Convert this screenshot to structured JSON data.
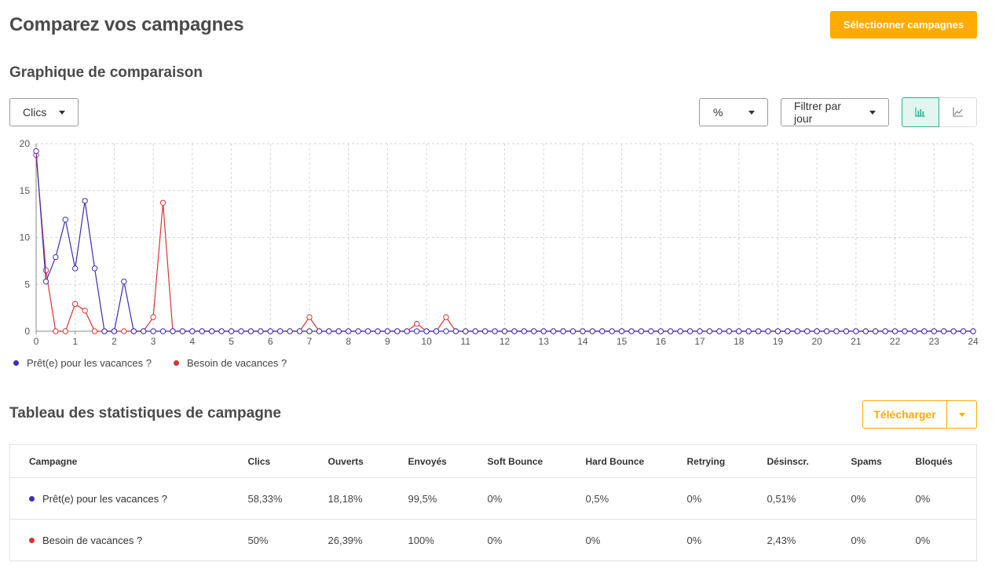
{
  "header": {
    "title": "Comparez vos campagnes",
    "select_button": "Sélectionner campagnes"
  },
  "chart_section": {
    "title": "Graphique de comparaison",
    "metric_select": "Clics",
    "unit_select": "%",
    "filter_select": "Filtrer par jour",
    "view_toggle": {
      "bar_icon": "bar-chart-icon",
      "line_icon": "line-chart-icon",
      "active": "bar"
    }
  },
  "chart_data": {
    "type": "line",
    "x": [
      0,
      0.25,
      0.5,
      0.75,
      1,
      1.25,
      1.5,
      1.75,
      2,
      2.25,
      2.5,
      2.75,
      3,
      3.25,
      3.5,
      3.75,
      4,
      4.25,
      4.5,
      4.75,
      5,
      5.25,
      5.5,
      5.75,
      6,
      6.25,
      6.5,
      6.75,
      7,
      7.25,
      7.5,
      7.75,
      8,
      8.25,
      8.5,
      8.75,
      9,
      9.25,
      9.5,
      9.75,
      10,
      10.25,
      10.5,
      10.75,
      11,
      11.25,
      11.5,
      11.75,
      12,
      12.25,
      12.5,
      12.75,
      13,
      13.25,
      13.5,
      13.75,
      14,
      14.25,
      14.5,
      14.75,
      15,
      15.25,
      15.5,
      15.75,
      16,
      16.25,
      16.5,
      16.75,
      17,
      17.25,
      17.5,
      17.75,
      18,
      18.25,
      18.5,
      18.75,
      19,
      19.25,
      19.5,
      19.75,
      20,
      20.25,
      20.5,
      20.75,
      21,
      21.25,
      21.5,
      21.75,
      22,
      22.25,
      22.5,
      22.75,
      23,
      23.25,
      23.5,
      23.75,
      24
    ],
    "xlim": [
      0,
      24
    ],
    "ylim": [
      0,
      20
    ],
    "xticks": [
      0,
      1,
      2,
      3,
      4,
      5,
      6,
      7,
      8,
      9,
      10,
      11,
      12,
      13,
      14,
      15,
      16,
      17,
      18,
      19,
      20,
      21,
      22,
      23,
      24
    ],
    "yticks": [
      0,
      5,
      10,
      15,
      20
    ],
    "grid": true,
    "legend_position": "bottom-left",
    "series": [
      {
        "name": "Prêt(e) pour les vacances ?",
        "color": "#3b2fb5",
        "values": [
          19.2,
          5.3,
          7.9,
          11.9,
          6.7,
          13.9,
          6.7,
          0,
          0,
          5.3,
          0,
          0,
          0,
          0,
          0,
          0,
          0,
          0,
          0,
          0,
          0,
          0,
          0,
          0,
          0,
          0,
          0,
          0,
          0,
          0,
          0,
          0,
          0,
          0,
          0,
          0,
          0,
          0,
          0,
          0,
          0,
          0,
          0,
          0,
          0,
          0,
          0,
          0,
          0,
          0,
          0,
          0,
          0,
          0,
          0,
          0,
          0,
          0,
          0,
          0,
          0,
          0,
          0,
          0,
          0,
          0,
          0,
          0,
          0,
          0,
          0,
          0,
          0,
          0,
          0,
          0,
          0,
          0,
          0,
          0,
          0,
          0,
          0,
          0,
          0,
          0,
          0,
          0,
          0,
          0,
          0,
          0,
          0,
          0,
          0,
          0,
          0
        ]
      },
      {
        "name": "Besoin de vacances ?",
        "color": "#d93535",
        "values": [
          18.8,
          6.5,
          0,
          0,
          2.9,
          2.2,
          0,
          0,
          0,
          0,
          0,
          0,
          1.5,
          13.7,
          0,
          0,
          0,
          0,
          0,
          0,
          0,
          0,
          0,
          0,
          0,
          0,
          0,
          0,
          1.5,
          0,
          0,
          0,
          0,
          0,
          0,
          0,
          0,
          0,
          0,
          0.8,
          0,
          0,
          1.5,
          0,
          0,
          0,
          0,
          0,
          0,
          0,
          0,
          0,
          0,
          0,
          0,
          0,
          0,
          0,
          0,
          0,
          0,
          0,
          0,
          0,
          0,
          0,
          0,
          0,
          0,
          0,
          0,
          0,
          0,
          0,
          0,
          0,
          0,
          0,
          0,
          0,
          0,
          0,
          0,
          0,
          0,
          0,
          0,
          0,
          0,
          0,
          0,
          0,
          0,
          0,
          0,
          0,
          0
        ]
      }
    ]
  },
  "table_section": {
    "title": "Tableau des statistiques de campagne",
    "download_label": "Télécharger",
    "columns": [
      "Campagne",
      "Clics",
      "Ouverts",
      "Envoyés",
      "Soft Bounce",
      "Hard Bounce",
      "Retrying",
      "Désinscr.",
      "Spams",
      "Bloqués"
    ],
    "rows": [
      {
        "color": "#3b2fb5",
        "cells": [
          "Prêt(e) pour les vacances ?",
          "58,33%",
          "18,18%",
          "99,5%",
          "0%",
          "0,5%",
          "0%",
          "0,51%",
          "0%",
          "0%"
        ]
      },
      {
        "color": "#d93535",
        "cells": [
          "Besoin de vacances ?",
          "50%",
          "26,39%",
          "100%",
          "0%",
          "0%",
          "0%",
          "2,43%",
          "0%",
          "0%"
        ]
      }
    ]
  }
}
